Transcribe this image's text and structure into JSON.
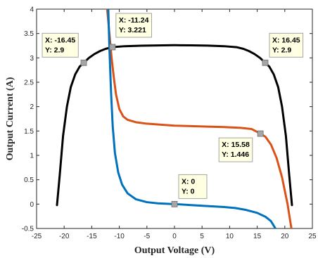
{
  "chart_data": {
    "type": "line",
    "xlabel": "Output Voltage (V)",
    "ylabel": "Output Current (A)",
    "xlim": [
      -25,
      25
    ],
    "ylim": [
      -0.5,
      4
    ],
    "grid": false,
    "xticks": [
      "-25",
      "-20",
      "-15",
      "-10",
      "-5",
      "0",
      "5",
      "10",
      "15",
      "20",
      "25"
    ],
    "yticks": [
      "-0.5",
      "0",
      "0.5",
      "1",
      "1.5",
      "2",
      "2.5",
      "3",
      "3.5",
      "4"
    ],
    "series": [
      {
        "color": "#000000",
        "points": [
          [
            -21.3,
            -0.02
          ],
          [
            -20.8,
            0.6
          ],
          [
            -20.2,
            1.4
          ],
          [
            -19.5,
            2.0
          ],
          [
            -18.8,
            2.4
          ],
          [
            -18.0,
            2.66
          ],
          [
            -17.2,
            2.82
          ],
          [
            -16.45,
            2.9
          ],
          [
            -15.5,
            3.0
          ],
          [
            -14.5,
            3.08
          ],
          [
            -13.5,
            3.14
          ],
          [
            -12.5,
            3.185
          ],
          [
            -11.24,
            3.221
          ],
          [
            -9.0,
            3.24
          ],
          [
            -6.0,
            3.25
          ],
          [
            -3.0,
            3.255
          ],
          [
            0.0,
            3.26
          ],
          [
            3.0,
            3.258
          ],
          [
            6.0,
            3.252
          ],
          [
            9.0,
            3.24
          ],
          [
            11.24,
            3.22
          ],
          [
            12.5,
            3.185
          ],
          [
            13.5,
            3.14
          ],
          [
            14.5,
            3.08
          ],
          [
            15.5,
            3.0
          ],
          [
            16.45,
            2.9
          ],
          [
            17.2,
            2.82
          ],
          [
            18.0,
            2.66
          ],
          [
            18.8,
            2.4
          ],
          [
            19.5,
            2.0
          ],
          [
            20.2,
            1.4
          ],
          [
            20.8,
            0.6
          ],
          [
            21.3,
            -0.02
          ]
        ]
      },
      {
        "color": "#D95319",
        "points": [
          [
            -12.2,
            4.0
          ],
          [
            -11.8,
            3.5
          ],
          [
            -11.4,
            3.0
          ],
          [
            -11.0,
            2.6
          ],
          [
            -10.6,
            2.25
          ],
          [
            -10.0,
            1.95
          ],
          [
            -9.3,
            1.8
          ],
          [
            -8.5,
            1.73
          ],
          [
            -7.0,
            1.68
          ],
          [
            -5.0,
            1.65
          ],
          [
            -2.0,
            1.625
          ],
          [
            0.0,
            1.61
          ],
          [
            3.0,
            1.6
          ],
          [
            6.0,
            1.59
          ],
          [
            9.0,
            1.58
          ],
          [
            12.0,
            1.565
          ],
          [
            14.0,
            1.54
          ],
          [
            15.58,
            1.446
          ],
          [
            16.5,
            1.38
          ],
          [
            17.5,
            1.22
          ],
          [
            18.5,
            0.95
          ],
          [
            19.5,
            0.55
          ],
          [
            20.5,
            0.0
          ],
          [
            21.2,
            -0.5
          ]
        ]
      },
      {
        "color": "#0072BD",
        "points": [
          [
            -12.0,
            4.0
          ],
          [
            -11.8,
            3.2
          ],
          [
            -11.5,
            2.3
          ],
          [
            -11.2,
            1.6
          ],
          [
            -10.8,
            1.05
          ],
          [
            -10.2,
            0.65
          ],
          [
            -9.5,
            0.4
          ],
          [
            -8.5,
            0.22
          ],
          [
            -7.0,
            0.1
          ],
          [
            -5.0,
            0.04
          ],
          [
            -3.0,
            0.015
          ],
          [
            0.0,
            0.0
          ],
          [
            3.0,
            -0.02
          ],
          [
            6.0,
            -0.04
          ],
          [
            9.0,
            -0.06
          ],
          [
            11.0,
            -0.08
          ],
          [
            13.0,
            -0.12
          ],
          [
            15.0,
            -0.18
          ],
          [
            16.5,
            -0.26
          ],
          [
            17.5,
            -0.35
          ],
          [
            18.3,
            -0.5
          ]
        ]
      }
    ],
    "annotations": [
      {
        "x": -16.45,
        "y": 2.9,
        "x_text": "X: -16.45",
        "y_text": "Y: 2.9"
      },
      {
        "x": -11.24,
        "y": 3.221,
        "x_text": "X: -11.24",
        "y_text": "Y: 3.221"
      },
      {
        "x": 16.45,
        "y": 2.9,
        "x_text": "X: 16.45",
        "y_text": "Y: 2.9"
      },
      {
        "x": 15.58,
        "y": 1.446,
        "x_text": "X: 15.58",
        "y_text": "Y: 1.446"
      },
      {
        "x": 0,
        "y": 0,
        "x_text": "X: 0",
        "y_text": "Y: 0"
      }
    ]
  }
}
